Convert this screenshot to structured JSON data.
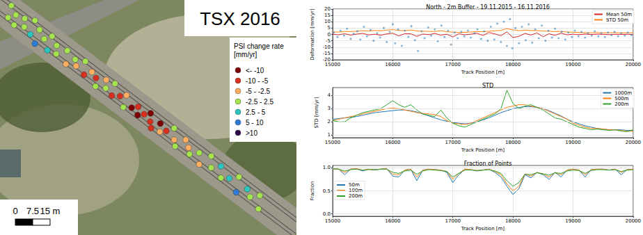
{
  "map": {
    "title": "TSX 2016",
    "legend": {
      "title": [
        "PSI change rate",
        "[mm/yr]"
      ],
      "bounds": [
        -10,
        -5,
        -2.5,
        2.5,
        5,
        10
      ],
      "classes": [
        {
          "label": "<- -10",
          "color": "#7f0000"
        },
        {
          "label": "-10 - -5",
          "color": "#d7301f"
        },
        {
          "label": "-5 - -2.5",
          "color": "#fdae61"
        },
        {
          "label": "-2.5 - 2.5",
          "color": "#a6e44d"
        },
        {
          "label": "2.5 - 5",
          "color": "#2cc4c0"
        },
        {
          "label": "5 - 10",
          "color": "#2c7bd6"
        },
        {
          "label": ">10",
          "color": "#2d004b"
        }
      ]
    },
    "scale_bar": {
      "ticks": [
        {
          "value": 0,
          "label": "0"
        },
        {
          "value": 7.5,
          "label": "7.5"
        },
        {
          "value": 15,
          "label": "15 m"
        }
      ]
    },
    "points": {
      "along": [
        2,
        4,
        6,
        8,
        10,
        12,
        14,
        16,
        18,
        20,
        22,
        24,
        26,
        28,
        30,
        33,
        36,
        38,
        40,
        42,
        45,
        47,
        50,
        52,
        54,
        56,
        58,
        60,
        63,
        65,
        67,
        70,
        72,
        74,
        76,
        78,
        80,
        82,
        84,
        86,
        88,
        90,
        93,
        95,
        97,
        100,
        102,
        105,
        108,
        110,
        113,
        116,
        119,
        122,
        125,
        128,
        131,
        134,
        137,
        140
      ],
      "across": [
        -3,
        2,
        -1,
        3,
        -2,
        1,
        -4,
        2,
        -2,
        4,
        0,
        -3,
        3,
        -1,
        2,
        -2,
        3,
        -1,
        1,
        -3,
        2,
        -1,
        0,
        3,
        -2,
        1,
        -3,
        2,
        0,
        -2,
        3,
        1,
        -1,
        2,
        0,
        -2,
        1,
        3,
        -1,
        2,
        0,
        -3,
        1,
        3,
        -2,
        0,
        2,
        -1,
        3,
        -3,
        1,
        -2,
        2,
        0,
        -3,
        3,
        -1,
        1,
        -2,
        3
      ],
      "rate": [
        1,
        0.5,
        -1,
        2,
        1.5,
        -0.5,
        0,
        3,
        1,
        6,
        -1.5,
        2,
        4,
        0.5,
        -2,
        1,
        -3,
        0,
        -4,
        1.5,
        -6,
        -3,
        -7,
        -2,
        -4,
        1,
        -2,
        -6,
        -8,
        -3,
        -1,
        -12,
        -9,
        -11,
        -7,
        -14,
        -8,
        -6,
        -10.5,
        -4,
        -7,
        -2,
        -3.5,
        -1,
        -4,
        -3,
        1,
        -2,
        -3,
        1,
        2,
        3,
        -1,
        4,
        -0.5,
        6,
        3,
        -2,
        2,
        -1
      ]
    }
  },
  "chart_data": [
    {
      "type": "line",
      "title": "North - 2m Buffer - 19.11.2015 - 16.11.2016",
      "x_label": "Track Position [m]",
      "y_label": "Deformation [mm/yr]",
      "xlim": [
        15000,
        20000
      ],
      "xticks": [
        15000,
        16000,
        17000,
        18000,
        19000,
        20000
      ],
      "ylim": [
        -20,
        20
      ],
      "yticks": [
        -20,
        -15,
        -10,
        -5,
        0,
        5,
        10,
        15,
        20
      ],
      "grid": true,
      "legend": "upper right",
      "x": [
        15000,
        15100,
        15200,
        15300,
        15400,
        15500,
        15600,
        15700,
        15800,
        15900,
        16000,
        16100,
        16200,
        16300,
        16400,
        16500,
        16600,
        16700,
        16800,
        16900,
        17000,
        17100,
        17200,
        17300,
        17400,
        17500,
        17600,
        17700,
        17800,
        17900,
        18000,
        18100,
        18200,
        18300,
        18400,
        18500,
        18600,
        18700,
        18800,
        18900,
        19000,
        19100,
        19200,
        19300,
        19400,
        19500,
        19600,
        19700,
        19800,
        19900,
        20000
      ],
      "series": [
        {
          "type": "scatter",
          "marker": "circle",
          "color": "#1f77b4",
          "x": [
            15020,
            15080,
            15130,
            15190,
            15240,
            15300,
            15350,
            15410,
            15460,
            15520,
            15570,
            15630,
            15680,
            15740,
            15790,
            15850,
            15900,
            15950,
            16000,
            16040,
            16090,
            16150,
            16200,
            16260,
            16310,
            16370,
            16420,
            16480,
            16530,
            16590,
            16640,
            16700,
            16750,
            16810,
            16860,
            16920,
            16970,
            17030,
            17080,
            17140,
            17190,
            17250,
            17300,
            17360,
            17410,
            17470,
            17520,
            17580,
            17630,
            17690,
            17740,
            17800,
            17850,
            17900,
            17950,
            17990,
            18040,
            18100,
            18150,
            18210,
            18260,
            18320,
            18370,
            18430,
            18480,
            18540,
            18590,
            18650,
            18700,
            18760,
            18810,
            18870,
            18920,
            18980,
            19030,
            19090,
            19140,
            19200,
            19250,
            19310,
            19360,
            19420,
            19470,
            19530,
            19580,
            19640,
            19690,
            19750,
            19800,
            19860,
            19910,
            19970
          ],
          "values": [
            1.5,
            -2,
            3,
            -1,
            4.5,
            -3.5,
            0.5,
            2.5,
            -4,
            6,
            -1.5,
            3.5,
            -5,
            1,
            -2.5,
            5,
            -6,
            2,
            8,
            -7,
            4,
            -9,
            3,
            -2,
            6.5,
            -4.5,
            -13,
            2.5,
            -3,
            5.5,
            -1,
            4,
            -5.5,
            7,
            -2,
            3,
            -8,
            1.5,
            -3,
            2,
            -1.5,
            3,
            -2.5,
            1,
            4,
            -3.5,
            2.5,
            -5,
            6,
            -4,
            8.5,
            -6,
            10,
            -9,
            12,
            -11,
            5,
            -7,
            6,
            -4.5,
            8,
            -6.5,
            4,
            -3,
            7,
            -5,
            3,
            -2.5,
            4.5,
            -3,
            2,
            -4,
            1.5,
            -2,
            3,
            -1.5,
            2,
            -2.5,
            1,
            -1,
            2.5,
            -1.5,
            1,
            -2,
            1.5,
            -0.5,
            2,
            -1.5,
            1,
            -1,
            1.5,
            -0.5
          ]
        },
        {
          "name": "Mean 50m",
          "type": "line",
          "color": "#d62728",
          "values": [
            0.2,
            -0.3,
            0.5,
            -0.5,
            0.3,
            0.8,
            -0.4,
            0.2,
            -0.6,
            0.4,
            1.0,
            -1.2,
            0.6,
            0.5,
            -1.5,
            0.3,
            -0.2,
            0.8,
            -0.6,
            0.2,
            -2.0,
            0.5,
            -0.3,
            0.2,
            0.9,
            -0.8,
            1.5,
            0.4,
            -1.0,
            2.0,
            -2.5,
            -1.5,
            0.8,
            -0.5,
            1.2,
            -1.8,
            0.5,
            -0.7,
            1.0,
            -0.3,
            0.2,
            -0.2,
            0.3,
            -0.1,
            0.2,
            0.1,
            -0.2,
            0.1,
            0.0,
            0.1,
            -0.1
          ]
        },
        {
          "name": "STD 50m",
          "type": "line",
          "color": "#ff7f0e",
          "values": [
            2.0,
            1.8,
            2.4,
            2.2,
            2.6,
            2.9,
            2.7,
            3.1,
            2.8,
            3.4,
            3.8,
            3.2,
            2.9,
            3.5,
            2.7,
            2.5,
            2.4,
            2.3,
            3.0,
            2.1,
            1.8,
            1.6,
            1.7,
            1.9,
            2.2,
            2.1,
            2.5,
            2.8,
            3.2,
            4.5,
            3.6,
            2.9,
            3.4,
            3.1,
            3.0,
            2.7,
            2.5,
            2.2,
            2.4,
            1.9,
            1.7,
            1.5,
            1.4,
            1.3,
            1.4,
            1.3,
            1.3,
            1.4,
            1.2,
            1.2,
            1.3
          ]
        }
      ]
    },
    {
      "type": "line",
      "title": "STD",
      "x_label": "Track Position [m]",
      "y_label": "STD [mm/yr]",
      "xlim": [
        15000,
        20000
      ],
      "xticks": [
        15000,
        16000,
        17000,
        18000,
        19000,
        20000
      ],
      "ylim": [
        0.8,
        4.6
      ],
      "yticks": [
        1,
        2,
        3,
        4
      ],
      "grid": true,
      "legend": "upper right",
      "x": [
        15000,
        15100,
        15200,
        15300,
        15400,
        15500,
        15600,
        15700,
        15800,
        15900,
        16000,
        16100,
        16200,
        16300,
        16400,
        16500,
        16600,
        16700,
        16800,
        16900,
        17000,
        17100,
        17200,
        17300,
        17400,
        17500,
        17600,
        17700,
        17800,
        17900,
        18000,
        18100,
        18200,
        18300,
        18400,
        18500,
        18600,
        18700,
        18800,
        18900,
        19000,
        19100,
        19200,
        19300,
        19400,
        19500,
        19600,
        19700,
        19800,
        19900,
        20000
      ],
      "series": [
        {
          "name": "1000m",
          "color": "#1f77b4",
          "values": [
            2.2,
            2.25,
            2.3,
            2.35,
            2.4,
            2.5,
            2.6,
            2.7,
            2.75,
            2.8,
            2.85,
            2.9,
            2.9,
            2.85,
            2.75,
            2.6,
            2.45,
            2.3,
            2.15,
            2.05,
            1.95,
            1.9,
            1.85,
            1.9,
            2.0,
            2.15,
            2.3,
            2.5,
            2.7,
            2.85,
            3.0,
            3.1,
            3.15,
            3.15,
            3.1,
            3.0,
            2.85,
            2.65,
            2.45,
            2.2,
            2.0,
            1.85,
            1.7,
            1.6,
            1.5,
            1.45,
            1.4,
            1.4,
            1.4,
            1.35,
            1.35
          ]
        },
        {
          "name": "500m",
          "color": "#ff7f0e",
          "values": [
            2.1,
            2.2,
            2.3,
            2.4,
            2.5,
            2.6,
            2.7,
            2.8,
            2.9,
            3.0,
            3.05,
            3.0,
            2.9,
            2.8,
            2.7,
            2.65,
            2.6,
            2.55,
            2.4,
            2.1,
            1.9,
            1.85,
            1.8,
            1.9,
            2.1,
            2.3,
            2.5,
            2.7,
            2.9,
            3.1,
            3.2,
            3.3,
            3.3,
            3.2,
            3.1,
            3.0,
            2.8,
            2.6,
            2.4,
            2.2,
            1.9,
            1.75,
            1.6,
            1.5,
            1.5,
            1.45,
            1.4,
            1.4,
            1.35,
            1.3,
            1.3
          ]
        },
        {
          "name": "200m",
          "color": "#2ca02c",
          "values": [
            2.1,
            2.0,
            2.0,
            2.3,
            2.5,
            2.7,
            2.8,
            2.9,
            3.0,
            3.3,
            3.6,
            3.3,
            3.1,
            3.3,
            2.9,
            2.6,
            2.5,
            2.4,
            2.9,
            2.3,
            1.9,
            1.7,
            1.6,
            1.8,
            2.0,
            2.2,
            2.4,
            2.6,
            3.0,
            4.4,
            3.4,
            3.0,
            3.2,
            3.3,
            3.1,
            2.9,
            2.6,
            2.3,
            2.2,
            2.0,
            1.8,
            1.6,
            1.5,
            1.4,
            1.45,
            1.4,
            1.35,
            1.4,
            1.3,
            1.25,
            1.4
          ]
        }
      ]
    },
    {
      "type": "line",
      "title": "Fraction of Points",
      "x_label": "Track Position [m]",
      "y_label": "Fraction",
      "xlim": [
        15000,
        20000
      ],
      "xticks": [
        15000,
        16000,
        17000,
        18000,
        19000,
        20000
      ],
      "ylim": [
        -0.05,
        1.05
      ],
      "yticks": [
        {
          "value": 0,
          "label": "0.0"
        },
        0.5,
        {
          "value": 1,
          "label": "1.0"
        }
      ],
      "grid": true,
      "legend": "center left",
      "x": [
        15000,
        15100,
        15200,
        15300,
        15400,
        15500,
        15600,
        15700,
        15800,
        15900,
        16000,
        16100,
        16200,
        16300,
        16400,
        16500,
        16600,
        16700,
        16800,
        16900,
        17000,
        17100,
        17200,
        17300,
        17400,
        17500,
        17600,
        17700,
        17800,
        17900,
        18000,
        18100,
        18200,
        18300,
        18400,
        18500,
        18600,
        18700,
        18800,
        18900,
        19000,
        19100,
        19200,
        19300,
        19400,
        19500,
        19600,
        19700,
        19800,
        19900,
        20000
      ],
      "series": [
        {
          "name": "50m",
          "color": "#1f77b4",
          "values": [
            0.98,
            0.97,
            0.85,
            0.97,
            0.98,
            0.93,
            0.97,
            0.95,
            0.97,
            0.98,
            0.82,
            0.8,
            0.95,
            0.97,
            0.72,
            0.95,
            0.97,
            0.96,
            0.95,
            0.9,
            0.68,
            0.85,
            0.97,
            0.96,
            0.93,
            0.95,
            0.97,
            0.9,
            0.8,
            0.6,
            0.42,
            0.55,
            0.85,
            0.78,
            0.9,
            0.85,
            0.75,
            0.9,
            0.8,
            0.95,
            0.97,
            0.95,
            0.8,
            0.96,
            0.97,
            0.97,
            0.95,
            0.97,
            0.85,
            0.96,
            0.97
          ]
        },
        {
          "name": "100m",
          "color": "#ff7f0e",
          "values": [
            0.98,
            0.97,
            0.9,
            0.97,
            0.98,
            0.95,
            0.97,
            0.96,
            0.97,
            0.98,
            0.86,
            0.85,
            0.95,
            0.97,
            0.8,
            0.95,
            0.97,
            0.96,
            0.95,
            0.92,
            0.75,
            0.88,
            0.97,
            0.96,
            0.94,
            0.95,
            0.97,
            0.92,
            0.85,
            0.65,
            0.5,
            0.6,
            0.87,
            0.82,
            0.9,
            0.87,
            0.8,
            0.9,
            0.85,
            0.95,
            0.97,
            0.95,
            0.85,
            0.96,
            0.97,
            0.97,
            0.95,
            0.97,
            0.9,
            0.96,
            0.97
          ]
        },
        {
          "name": "200m",
          "color": "#2ca02c",
          "values": [
            0.98,
            0.97,
            0.93,
            0.96,
            0.97,
            0.95,
            0.96,
            0.96,
            0.97,
            0.97,
            0.9,
            0.88,
            0.93,
            0.95,
            0.86,
            0.93,
            0.96,
            0.95,
            0.94,
            0.92,
            0.8,
            0.88,
            0.95,
            0.95,
            0.94,
            0.95,
            0.96,
            0.93,
            0.88,
            0.72,
            0.6,
            0.68,
            0.86,
            0.85,
            0.89,
            0.87,
            0.84,
            0.89,
            0.88,
            0.93,
            0.95,
            0.94,
            0.88,
            0.94,
            0.96,
            0.96,
            0.95,
            0.96,
            0.92,
            0.95,
            0.96
          ]
        }
      ]
    }
  ]
}
